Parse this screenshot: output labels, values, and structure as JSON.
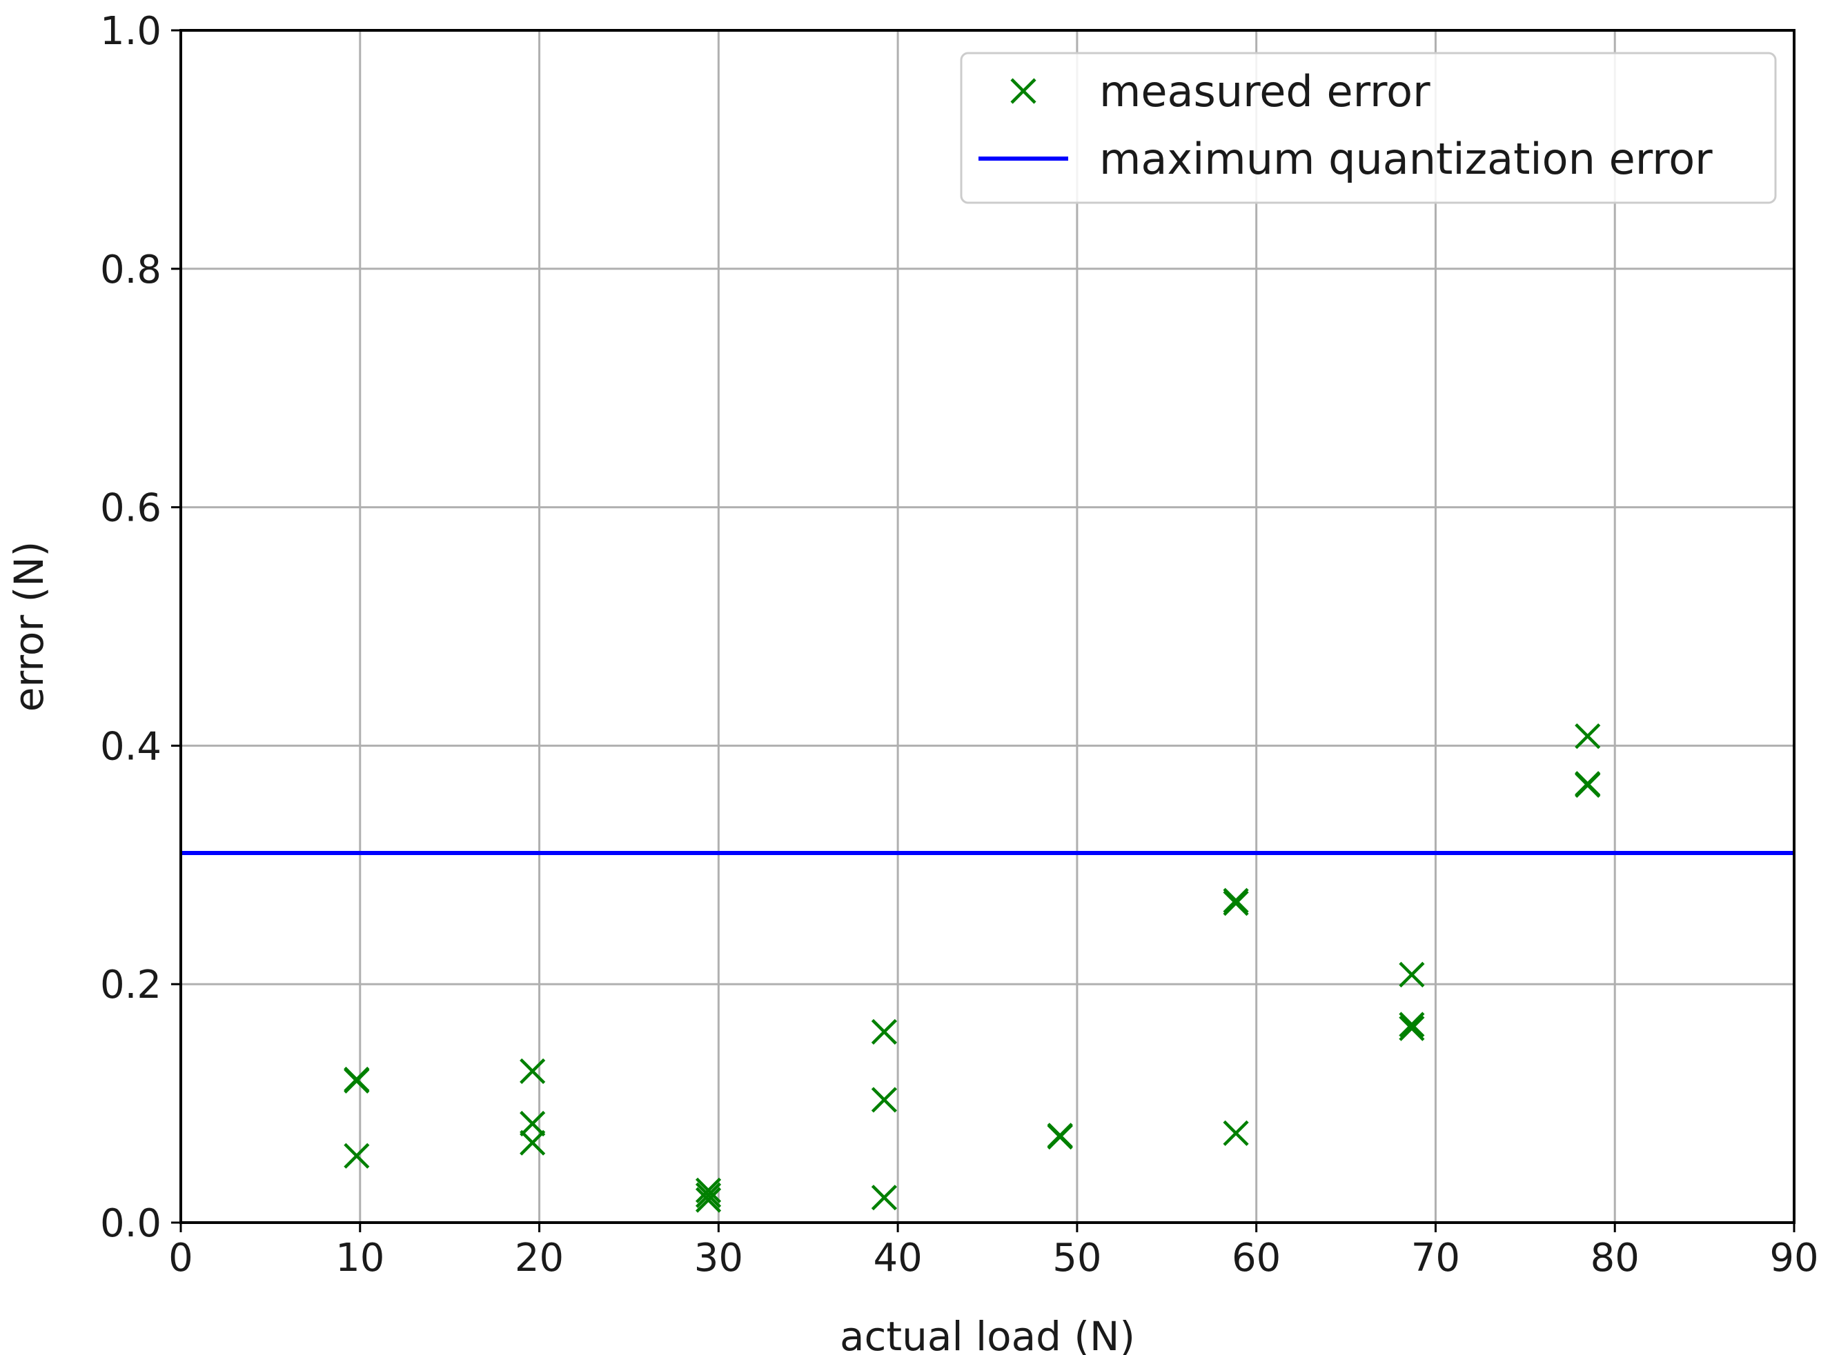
{
  "chart_data": {
    "type": "scatter",
    "title": "",
    "xlabel": "actual load (N)",
    "ylabel": "error (N)",
    "xlim": [
      0,
      90
    ],
    "ylim": [
      0.0,
      1.0
    ],
    "grid": true,
    "legend_position": "top-right",
    "x_ticks": [
      "0",
      "10",
      "20",
      "30",
      "40",
      "50",
      "60",
      "70",
      "80",
      "90"
    ],
    "y_ticks": [
      "0.0",
      "0.2",
      "0.4",
      "0.6",
      "0.8",
      "1.0"
    ],
    "series": [
      {
        "name": "measured error",
        "kind": "scatter",
        "marker": "x",
        "color": "#008000",
        "points": [
          [
            9.81,
            0.12
          ],
          [
            9.81,
            0.119
          ],
          [
            9.81,
            0.056
          ],
          [
            19.62,
            0.127
          ],
          [
            19.62,
            0.083
          ],
          [
            19.62,
            0.067
          ],
          [
            29.43,
            0.027
          ],
          [
            29.43,
            0.023
          ],
          [
            29.43,
            0.019
          ],
          [
            39.24,
            0.16
          ],
          [
            39.24,
            0.103
          ],
          [
            39.24,
            0.021
          ],
          [
            49.05,
            0.073
          ],
          [
            49.05,
            0.072
          ],
          [
            58.86,
            0.268
          ],
          [
            58.86,
            0.27
          ],
          [
            58.86,
            0.075
          ],
          [
            68.67,
            0.208
          ],
          [
            68.67,
            0.166
          ],
          [
            68.67,
            0.163
          ],
          [
            78.48,
            0.408
          ],
          [
            78.48,
            0.367
          ],
          [
            78.48,
            0.368
          ]
        ]
      },
      {
        "name": "maximum quantization error",
        "kind": "hline",
        "color": "#0000ff",
        "y": 0.31
      }
    ]
  }
}
